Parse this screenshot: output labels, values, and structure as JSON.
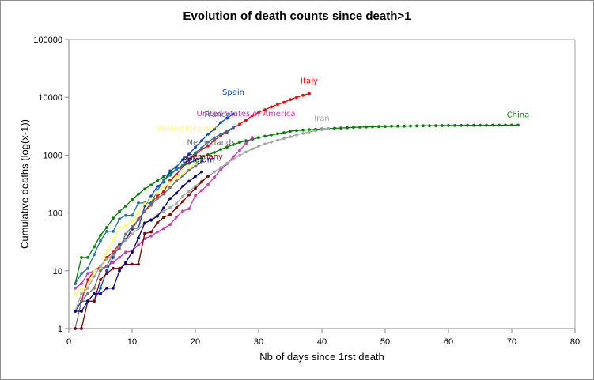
{
  "chart_data": {
    "type": "line",
    "title": "Evolution of death counts since death>1",
    "xlabel": "Nb of days since 1rst death",
    "ylabel": "Cumulative deaths (log(x-1))",
    "xlim": [
      0,
      80
    ],
    "ylim": [
      1,
      100000
    ],
    "yscale": "log",
    "xticks": [
      0,
      10,
      20,
      30,
      40,
      50,
      60,
      70,
      80
    ],
    "yticks": [
      1,
      10,
      100,
      1000,
      10000,
      100000
    ],
    "xtick_labels": [
      "0",
      "10",
      "20",
      "30",
      "40",
      "50",
      "60",
      "70",
      "80"
    ],
    "ytick_labels": [
      "1",
      "10",
      "100",
      "1000",
      "10000",
      "100000"
    ],
    "grid": false,
    "legend": "inline-labels-at-line-ends",
    "series": [
      {
        "name": "China",
        "color": "#008000",
        "label_x": 71,
        "label_y": 4500,
        "x": [
          1,
          2,
          3,
          4,
          5,
          6,
          7,
          8,
          9,
          10,
          11,
          12,
          13,
          14,
          15,
          16,
          17,
          18,
          19,
          20,
          21,
          22,
          23,
          24,
          25,
          26,
          27,
          28,
          29,
          30,
          31,
          32,
          33,
          34,
          35,
          36,
          37,
          38,
          39,
          40,
          41,
          42,
          43,
          44,
          45,
          46,
          47,
          48,
          49,
          50,
          51,
          52,
          53,
          54,
          55,
          56,
          57,
          58,
          59,
          60,
          61,
          62,
          63,
          64,
          65,
          66,
          67,
          68,
          69,
          70,
          71
        ],
        "values": [
          6,
          17,
          17,
          26,
          41,
          56,
          81,
          106,
          132,
          170,
          213,
          259,
          304,
          361,
          425,
          490,
          563,
          638,
          724,
          813,
          910,
          1017,
          1114,
          1259,
          1380,
          1523,
          1665,
          1770,
          1868,
          2004,
          2118,
          2236,
          2345,
          2442,
          2592,
          2663,
          2715,
          2744,
          2788,
          2835,
          2870,
          2912,
          2943,
          2981,
          3012,
          3042,
          3070,
          3097,
          3119,
          3136,
          3158,
          3169,
          3176,
          3189,
          3199,
          3213,
          3226,
          3237,
          3245,
          3249,
          3253,
          3261,
          3270,
          3277,
          3281,
          3287,
          3292,
          3295,
          3300,
          3305,
          3309
        ]
      },
      {
        "name": "Italy",
        "color": "#ff0000",
        "label_x": 38,
        "label_y": 17500,
        "x": [
          1,
          2,
          3,
          4,
          5,
          6,
          7,
          8,
          9,
          10,
          11,
          12,
          13,
          14,
          15,
          16,
          17,
          18,
          19,
          20,
          21,
          22,
          23,
          24,
          25,
          26,
          27,
          28,
          29,
          30,
          31,
          32,
          33,
          34,
          35,
          36,
          37,
          38
        ],
        "values": [
          2,
          3,
          7,
          10,
          12,
          17,
          21,
          29,
          34,
          52,
          79,
          107,
          148,
          197,
          233,
          366,
          463,
          631,
          827,
          1016,
          1266,
          1441,
          1809,
          2158,
          2503,
          2978,
          3405,
          4032,
          4825,
          5476,
          6077,
          6820,
          7503,
          8165,
          9134,
          10023,
          10779,
          11591
        ]
      },
      {
        "name": "Spain",
        "color": "#0047d6",
        "label_x": 26,
        "label_y": 11000,
        "x": [
          1,
          2,
          3,
          4,
          5,
          6,
          7,
          8,
          9,
          10,
          11,
          12,
          13,
          14,
          15,
          16,
          17,
          18,
          19,
          20,
          21,
          22,
          23,
          24,
          25,
          26
        ],
        "values": [
          2,
          3,
          3,
          3,
          5,
          10,
          17,
          28,
          35,
          54,
          55,
          133,
          195,
          289,
          342,
          533,
          623,
          830,
          1043,
          1375,
          1772,
          2311,
          2808,
          3647,
          4365,
          5138
        ]
      },
      {
        "name": "France",
        "color": "#1f77a4",
        "label_x": 23.5,
        "label_y": 4600,
        "x": [
          1,
          2,
          3,
          4,
          5,
          6,
          7,
          8,
          9,
          10,
          11,
          12,
          13,
          14,
          15,
          16,
          17,
          18,
          19,
          20,
          21,
          22,
          23,
          24,
          25,
          26
        ],
        "values": [
          6,
          9,
          11,
          19,
          33,
          48,
          48,
          79,
          91,
          91,
          149,
          149,
          149,
          244,
          372,
          450,
          562,
          674,
          860,
          1100,
          1331,
          1696,
          1995,
          2314,
          2606,
          3024
        ]
      },
      {
        "name": "United States of America",
        "color": "#c83cb4",
        "label_x": 28,
        "label_y": 4700,
        "x": [
          1,
          2,
          3,
          4,
          5,
          6,
          7,
          8,
          9,
          10,
          11,
          12,
          13,
          14,
          15,
          16,
          17,
          18,
          19,
          20,
          21,
          22,
          23,
          24,
          25,
          26,
          27,
          28,
          29
        ],
        "values": [
          5,
          6,
          9,
          10,
          11,
          12,
          14,
          17,
          21,
          22,
          28,
          36,
          40,
          47,
          54,
          63,
          85,
          108,
          118,
          200,
          244,
          307,
          417,
          557,
          706,
          942,
          1209,
          1581,
          2026
        ]
      },
      {
        "name": "United Kingdom",
        "color": "#ffff66",
        "label_x": 19,
        "label_y": 2600,
        "x": [
          1,
          2,
          3,
          4,
          5,
          6,
          7,
          8,
          9,
          10,
          11,
          12,
          13,
          14,
          15,
          16,
          17,
          18,
          19,
          20
        ],
        "values": [
          4,
          5,
          5,
          10,
          11,
          21,
          35,
          55,
          60,
          71,
          104,
          144,
          177,
          233,
          281,
          335,
          422,
          465,
          578,
          759
        ]
      },
      {
        "name": "Iran",
        "color": "#a6a6a6",
        "label_x": 40,
        "label_y": 3900,
        "x": [
          1,
          2,
          3,
          4,
          5,
          6,
          7,
          8,
          9,
          10,
          11,
          12,
          13,
          14,
          15,
          16,
          17,
          18,
          19,
          20,
          21,
          22,
          23,
          24,
          25,
          26,
          27,
          28,
          29,
          30,
          31,
          32,
          33,
          34,
          35,
          36,
          37,
          38,
          39,
          40,
          41
        ],
        "values": [
          2,
          4,
          5,
          8,
          12,
          16,
          19,
          26,
          34,
          43,
          54,
          66,
          77,
          92,
          107,
          124,
          145,
          194,
          237,
          291,
          354,
          429,
          514,
          611,
          724,
          853,
          988,
          1135,
          1284,
          1433,
          1556,
          1685,
          1812,
          1934,
          2077,
          2234,
          2378,
          2517,
          2640,
          2757,
          2898
        ]
      },
      {
        "name": "Netherlands",
        "color": "#707070",
        "label_x": 22.5,
        "label_y": 1500,
        "x": [
          1,
          2,
          3,
          4,
          5,
          6,
          7,
          8,
          9,
          10,
          11,
          12,
          13,
          14,
          15,
          16,
          17,
          18,
          19,
          20,
          21
        ],
        "values": [
          1,
          3,
          4,
          5,
          10,
          12,
          20,
          24,
          43,
          58,
          76,
          106,
          136,
          179,
          213,
          276,
          356,
          434,
          546,
          639,
          771
        ]
      },
      {
        "name": "Germany",
        "color": "#800000",
        "label_x": 21.5,
        "label_y": 850,
        "x": [
          1,
          2,
          3,
          4,
          5,
          6,
          7,
          8,
          9,
          10,
          11,
          12,
          13,
          14,
          15,
          16,
          17,
          18,
          19,
          20,
          21,
          22
        ],
        "values": [
          1,
          1,
          3,
          3,
          7,
          9,
          11,
          11,
          13,
          13,
          13,
          44,
          47,
          68,
          84,
          94,
          123,
          157,
          206,
          267,
          342,
          433
        ]
      },
      {
        "name": "Belgium",
        "color": "#000080",
        "label_x": 20.5,
        "label_y": 750,
        "x": [
          1,
          2,
          3,
          4,
          5,
          6,
          7,
          8,
          9,
          10,
          11,
          12,
          13,
          14,
          15,
          16,
          17,
          18,
          19,
          20,
          21
        ],
        "values": [
          2,
          2,
          3,
          4,
          4,
          5,
          5,
          10,
          14,
          21,
          37,
          67,
          75,
          88,
          122,
          178,
          220,
          289,
          353,
          431,
          513
        ]
      }
    ]
  }
}
